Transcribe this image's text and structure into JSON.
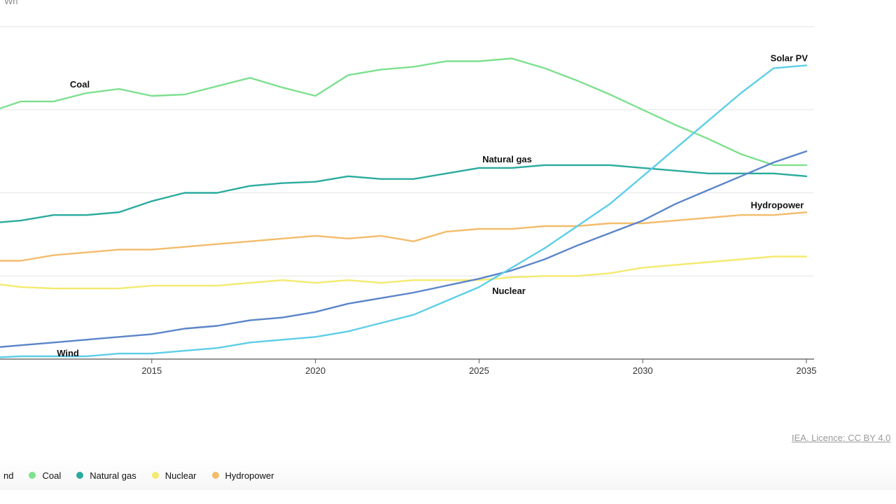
{
  "chart_data": {
    "type": "line",
    "unit_label": "Wh",
    "x_range": [
      2010,
      2035
    ],
    "x_ticks": [
      2015,
      2020,
      2025,
      2030,
      2035
    ],
    "ylim": [
      0,
      12
    ],
    "y_gridlines": [
      3,
      6,
      9,
      12
    ],
    "credit": "IEA. Licence: CC BY 4.0",
    "series": [
      {
        "name": "Coal",
        "label": "Coal",
        "color": "#7ee08f",
        "label_at": [
          2012.5,
          9.8
        ],
        "x": [
          2010,
          2011,
          2012,
          2013,
          2014,
          2015,
          2016,
          2017,
          2018,
          2019,
          2020,
          2021,
          2022,
          2023,
          2024,
          2025,
          2026,
          2027,
          2028,
          2029,
          2030,
          2031,
          2032,
          2033,
          2034,
          2035
        ],
        "y": [
          8.9,
          9.3,
          9.3,
          9.6,
          9.75,
          9.5,
          9.55,
          9.85,
          10.15,
          9.8,
          9.5,
          10.25,
          10.45,
          10.55,
          10.75,
          10.75,
          10.85,
          10.5,
          10.05,
          9.55,
          9.0,
          8.45,
          7.95,
          7.4,
          7.0,
          7.0
        ]
      },
      {
        "name": "Natural gas",
        "label": "Natural gas",
        "color": "#2aab9e",
        "label_at": [
          2025.1,
          7.1
        ],
        "x": [
          2010,
          2011,
          2012,
          2013,
          2014,
          2015,
          2016,
          2017,
          2018,
          2019,
          2020,
          2021,
          2022,
          2023,
          2024,
          2025,
          2026,
          2027,
          2028,
          2029,
          2030,
          2031,
          2032,
          2033,
          2034,
          2035
        ],
        "y": [
          4.9,
          5.0,
          5.2,
          5.2,
          5.3,
          5.7,
          6.0,
          6.0,
          6.25,
          6.35,
          6.4,
          6.6,
          6.5,
          6.5,
          6.7,
          6.9,
          6.9,
          7.0,
          7.0,
          7.0,
          6.9,
          6.8,
          6.7,
          6.7,
          6.7,
          6.6
        ]
      },
      {
        "name": "Hydropower",
        "label": "Hydropower",
        "color": "#f3bc6c",
        "label_at": [
          2033.3,
          5.45
        ],
        "x": [
          2010,
          2011,
          2012,
          2013,
          2014,
          2015,
          2016,
          2017,
          2018,
          2019,
          2020,
          2021,
          2022,
          2023,
          2024,
          2025,
          2026,
          2027,
          2028,
          2029,
          2030,
          2031,
          2032,
          2033,
          2034,
          2035
        ],
        "y": [
          3.55,
          3.55,
          3.75,
          3.85,
          3.95,
          3.95,
          4.05,
          4.15,
          4.25,
          4.35,
          4.45,
          4.35,
          4.45,
          4.25,
          4.6,
          4.7,
          4.7,
          4.8,
          4.8,
          4.9,
          4.9,
          5.0,
          5.1,
          5.2,
          5.2,
          5.3
        ]
      },
      {
        "name": "Nuclear",
        "label": "Nuclear",
        "color": "#f4ea6e",
        "label_at": [
          2025.4,
          2.35
        ],
        "x": [
          2010,
          2011,
          2012,
          2013,
          2014,
          2015,
          2016,
          2017,
          2018,
          2019,
          2020,
          2021,
          2022,
          2023,
          2024,
          2025,
          2026,
          2027,
          2028,
          2029,
          2030,
          2031,
          2032,
          2033,
          2034,
          2035
        ],
        "y": [
          2.75,
          2.6,
          2.55,
          2.55,
          2.55,
          2.65,
          2.65,
          2.65,
          2.75,
          2.85,
          2.75,
          2.85,
          2.75,
          2.85,
          2.85,
          2.85,
          2.95,
          3.0,
          3.0,
          3.1,
          3.3,
          3.4,
          3.5,
          3.6,
          3.7,
          3.7
        ]
      },
      {
        "name": "Wind",
        "label": "Wind",
        "color": "#5b85c9",
        "label_at": [
          2012.1,
          0.1
        ],
        "x": [
          2010,
          2011,
          2012,
          2013,
          2014,
          2015,
          2016,
          2017,
          2018,
          2019,
          2020,
          2021,
          2022,
          2023,
          2024,
          2025,
          2026,
          2027,
          2028,
          2029,
          2030,
          2031,
          2032,
          2033,
          2034,
          2035
        ],
        "y": [
          0.4,
          0.5,
          0.6,
          0.7,
          0.8,
          0.9,
          1.1,
          1.2,
          1.4,
          1.5,
          1.7,
          2.0,
          2.2,
          2.4,
          2.65,
          2.9,
          3.2,
          3.6,
          4.1,
          4.55,
          5.0,
          5.6,
          6.1,
          6.6,
          7.1,
          7.5
        ]
      },
      {
        "name": "Solar PV",
        "label": "Solar PV",
        "color": "#5dcee7",
        "label_at": [
          2033.9,
          10.75
        ],
        "x": [
          2010,
          2011,
          2012,
          2013,
          2014,
          2015,
          2016,
          2017,
          2018,
          2019,
          2020,
          2021,
          2022,
          2023,
          2024,
          2025,
          2026,
          2027,
          2028,
          2029,
          2030,
          2031,
          2032,
          2033,
          2034,
          2035
        ],
        "y": [
          0.05,
          0.1,
          0.1,
          0.1,
          0.2,
          0.2,
          0.3,
          0.4,
          0.6,
          0.7,
          0.8,
          1.0,
          1.3,
          1.6,
          2.1,
          2.6,
          3.3,
          4.0,
          4.8,
          5.6,
          6.6,
          7.6,
          8.6,
          9.6,
          10.5,
          10.6
        ]
      }
    ],
    "legend": {
      "placement": "bottom",
      "items": [
        {
          "label": "Wind",
          "visible_text": "nd",
          "color": "#5b85c9"
        },
        {
          "label": "Coal",
          "visible_text": "Coal",
          "color": "#7ee08f"
        },
        {
          "label": "Natural gas",
          "visible_text": "Natural gas",
          "color": "#2aab9e"
        },
        {
          "label": "Nuclear",
          "visible_text": "Nuclear",
          "color": "#f4ea6e"
        },
        {
          "label": "Hydropower",
          "visible_text": "Hydropower",
          "color": "#f3bc6c"
        }
      ]
    }
  }
}
